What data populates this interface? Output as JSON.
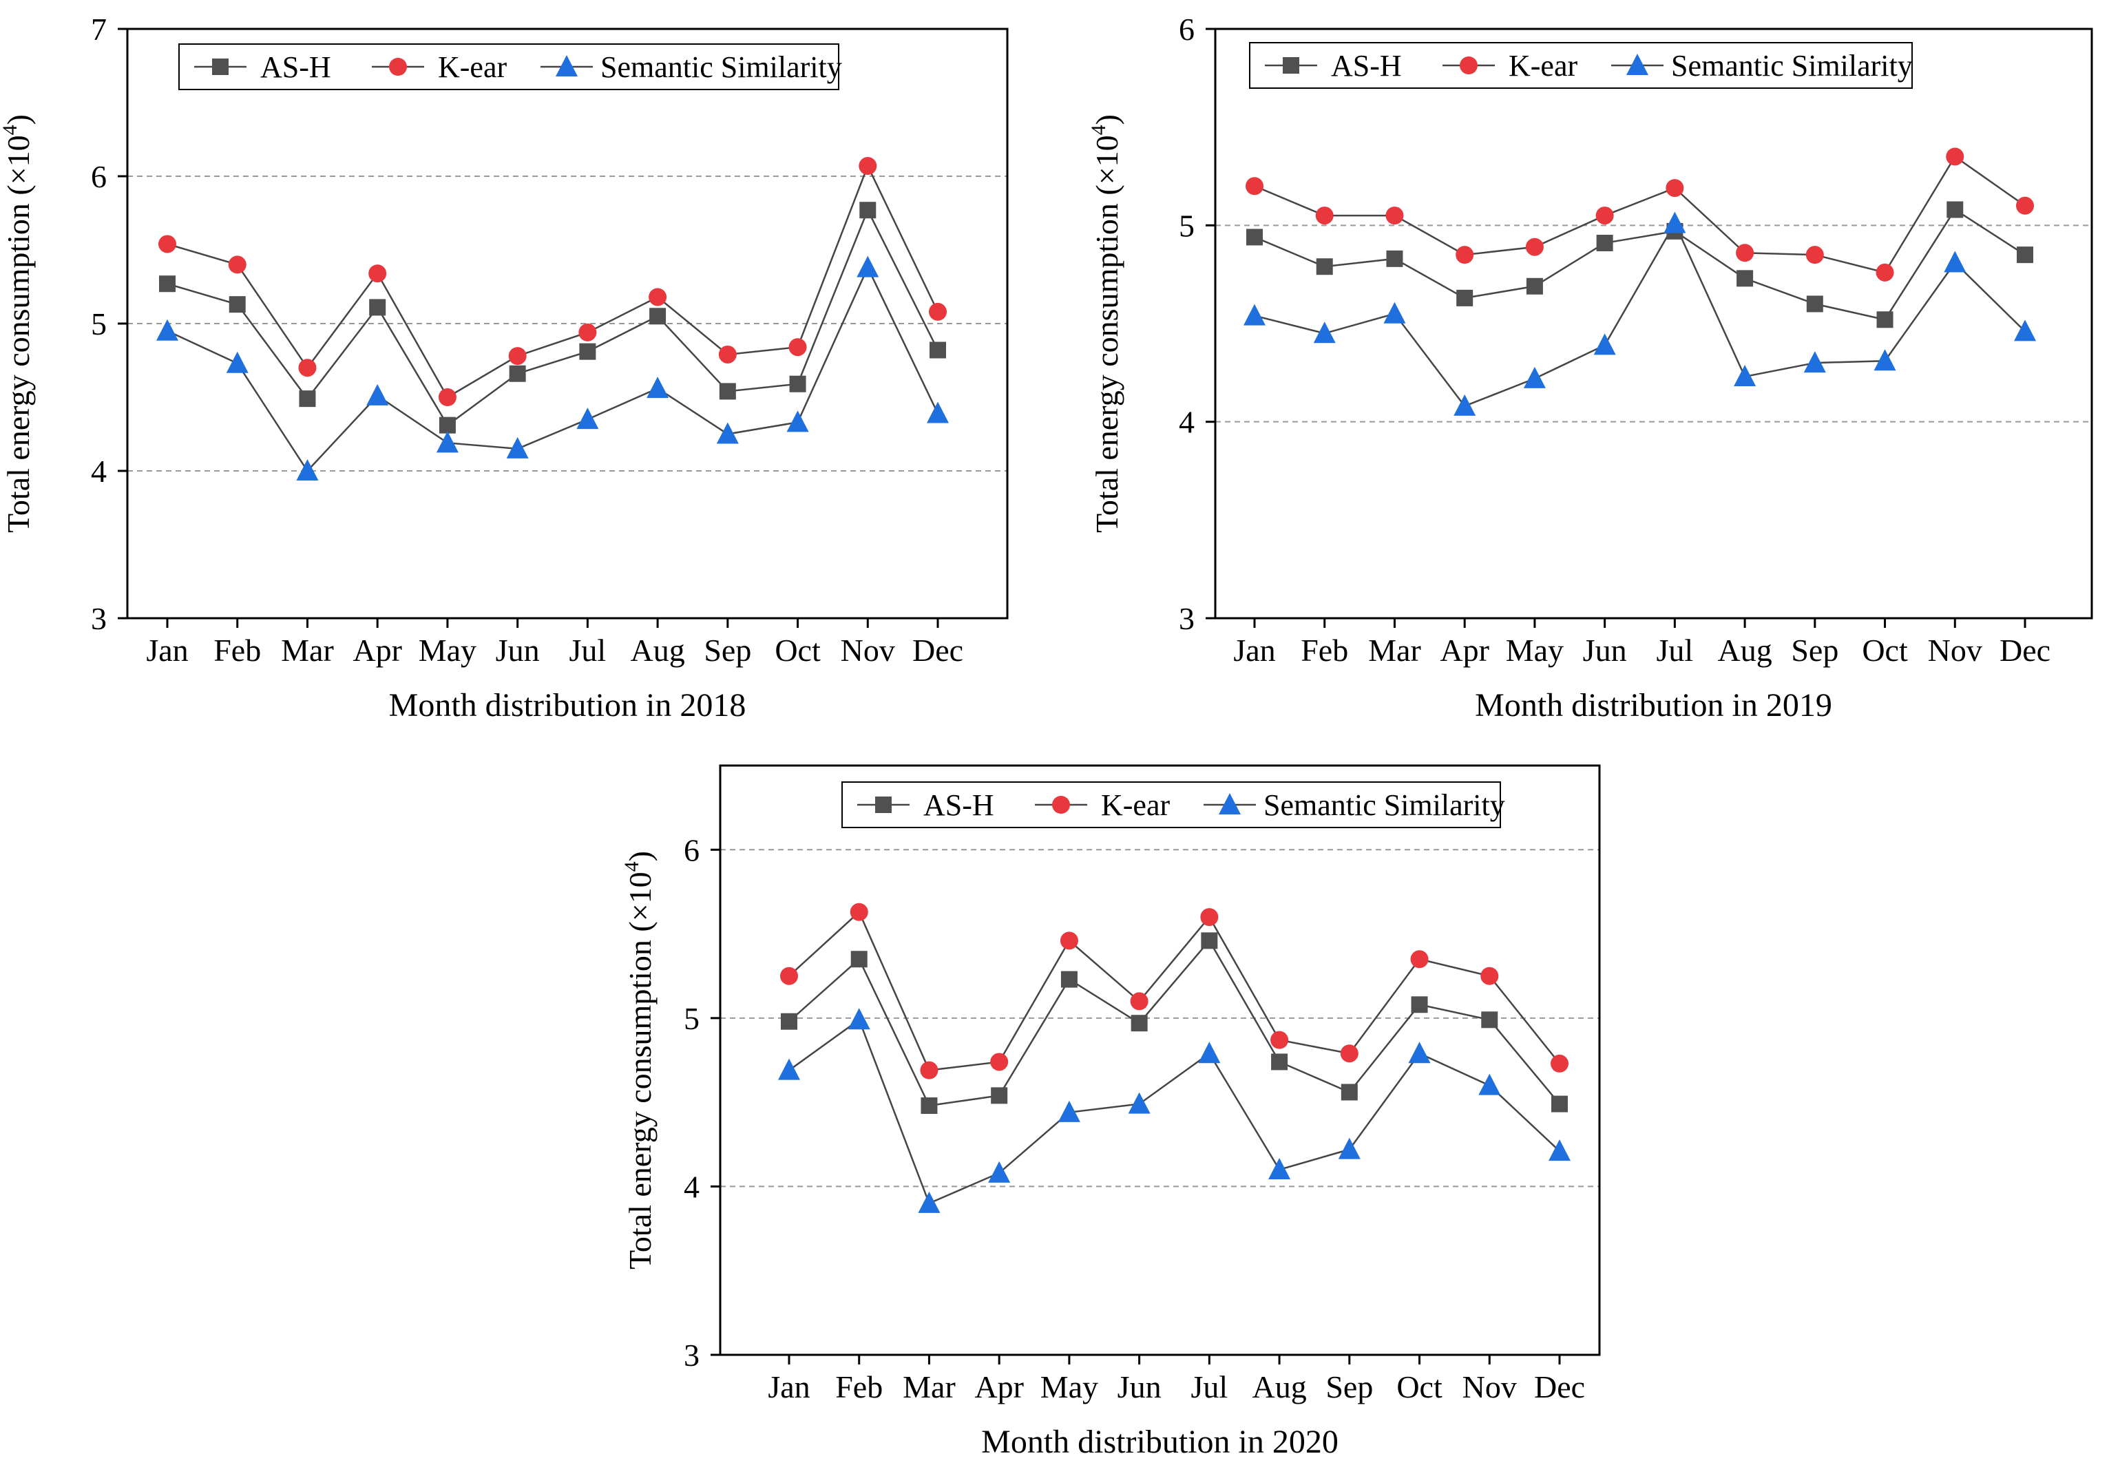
{
  "figure": {
    "series_names": [
      "AS-H",
      "K-ear",
      "Semantic Similarity"
    ],
    "colors": {
      "AS-H": "#505050",
      "K-ear": "#e8383d",
      "Semantic Similarity": "#1f6fde",
      "line": "#454545",
      "grid": "#999999"
    }
  },
  "chart_data": [
    {
      "type": "line",
      "xlabel": "Month distribution in 2018",
      "ylabel": "Total energy consumption (×10",
      "ylabel_sup": "4",
      "ylabel_close": ")",
      "ylim": [
        3,
        7
      ],
      "yticks": [
        3,
        4,
        5,
        6,
        7
      ],
      "gridlines": [
        4,
        5,
        6
      ],
      "categories": [
        "Jan",
        "Feb",
        "Mar",
        "Apr",
        "May",
        "Jun",
        "Jul",
        "Aug",
        "Sep",
        "Oct",
        "Nov",
        "Dec"
      ],
      "series": [
        {
          "name": "AS-H",
          "marker": "square",
          "values": [
            5.27,
            5.13,
            4.49,
            5.11,
            4.31,
            4.66,
            4.81,
            5.05,
            4.54,
            4.59,
            5.77,
            4.82
          ]
        },
        {
          "name": "K-ear",
          "marker": "circle",
          "values": [
            5.54,
            5.4,
            4.7,
            5.34,
            4.5,
            4.78,
            4.94,
            5.18,
            4.79,
            4.84,
            6.07,
            5.08
          ]
        },
        {
          "name": "Semantic Similarity",
          "marker": "triangle",
          "values": [
            4.95,
            4.73,
            4.0,
            4.51,
            4.19,
            4.15,
            4.35,
            4.56,
            4.25,
            4.33,
            5.38,
            4.39
          ]
        }
      ]
    },
    {
      "type": "line",
      "xlabel": "Month distribution in 2019",
      "ylabel": "Total energy consumption (×10",
      "ylabel_sup": "4",
      "ylabel_close": ")",
      "ylim": [
        3,
        6
      ],
      "yticks": [
        3,
        4,
        5,
        6
      ],
      "gridlines": [
        4,
        5
      ],
      "categories": [
        "Jan",
        "Feb",
        "Mar",
        "Apr",
        "May",
        "Jun",
        "Jul",
        "Aug",
        "Sep",
        "Oct",
        "Nov",
        "Dec"
      ],
      "series": [
        {
          "name": "AS-H",
          "marker": "square",
          "values": [
            4.94,
            4.79,
            4.83,
            4.63,
            4.69,
            4.91,
            4.97,
            4.73,
            4.6,
            4.52,
            5.08,
            4.85
          ]
        },
        {
          "name": "K-ear",
          "marker": "circle",
          "values": [
            5.2,
            5.05,
            5.05,
            4.85,
            4.89,
            5.05,
            5.19,
            4.86,
            4.85,
            4.76,
            5.35,
            5.1
          ]
        },
        {
          "name": "Semantic Similarity",
          "marker": "triangle",
          "values": [
            4.54,
            4.45,
            4.55,
            4.08,
            4.22,
            4.39,
            5.01,
            4.23,
            4.3,
            4.31,
            4.81,
            4.46
          ]
        }
      ]
    },
    {
      "type": "line",
      "xlabel": "Month distribution in 2020",
      "ylabel": "Total energy consumption (×10",
      "ylabel_sup": "4",
      "ylabel_close": ")",
      "ylim": [
        3,
        6.5
      ],
      "yticks": [
        3,
        4,
        5,
        6
      ],
      "gridlines": [
        4,
        5,
        6
      ],
      "categories": [
        "Jan",
        "Feb",
        "Mar",
        "Apr",
        "May",
        "Jun",
        "Jul",
        "Aug",
        "Sep",
        "Oct",
        "Nov",
        "Dec"
      ],
      "series": [
        {
          "name": "AS-H",
          "marker": "square",
          "values": [
            4.98,
            5.35,
            4.48,
            4.54,
            5.23,
            4.97,
            5.46,
            4.74,
            4.56,
            5.08,
            4.99,
            4.49
          ]
        },
        {
          "name": "K-ear",
          "marker": "circle",
          "values": [
            5.25,
            5.63,
            4.69,
            4.74,
            5.46,
            5.1,
            5.6,
            4.87,
            4.79,
            5.35,
            5.25,
            4.73
          ]
        },
        {
          "name": "Semantic Similarity",
          "marker": "triangle",
          "values": [
            4.69,
            4.99,
            3.9,
            4.08,
            4.44,
            4.49,
            4.79,
            4.1,
            4.22,
            4.79,
            4.6,
            4.21
          ]
        }
      ]
    }
  ]
}
